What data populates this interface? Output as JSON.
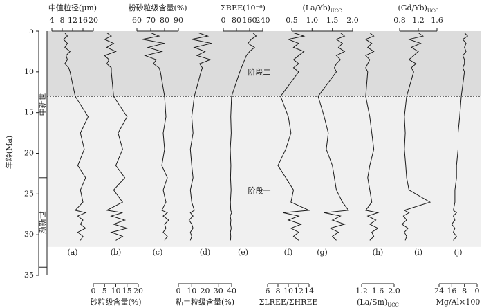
{
  "chart_data": {
    "type": "profile",
    "y_label": "年龄(Ma)",
    "ylim": [
      5,
      35
    ],
    "yticks": [
      5,
      10,
      15,
      20,
      25,
      30,
      35
    ],
    "line_color": "#1a1a1a",
    "x": [
      5.2,
      5.6,
      6.0,
      6.5,
      7.0,
      7.5,
      8.0,
      8.5,
      9.0,
      9.5,
      10.0,
      13.0,
      15.5,
      17.5,
      19.5,
      21.5,
      23.0,
      24.5,
      26.0,
      27.0,
      27.3,
      27.7,
      28.2,
      28.7,
      29.2,
      29.7,
      30.2,
      30.7
    ],
    "epochs": [
      {
        "name": "中新世",
        "range": [
          5,
          23
        ]
      },
      {
        "name": "渐新世",
        "range": [
          23,
          34
        ]
      }
    ],
    "stages": [
      {
        "name": "阶段二",
        "range": [
          5,
          13
        ],
        "color": "#dcdcdc"
      },
      {
        "name": "阶段一",
        "range": [
          13,
          31.5
        ],
        "color": "#f0f0f0"
      }
    ],
    "panels": [
      {
        "label": "(a)",
        "axis_title": "中值粒径(μm)",
        "axis_position": "top",
        "xlim": [
          4,
          20
        ],
        "xticks": [
          4,
          8,
          12,
          16,
          20
        ],
        "values": [
          9,
          10,
          8.5,
          10,
          9,
          11,
          9.5,
          10,
          9,
          10.5,
          11,
          13,
          18,
          15,
          16.5,
          14,
          17,
          15,
          16,
          13,
          17,
          14,
          16,
          15,
          17,
          14,
          16,
          15
        ]
      },
      {
        "label": "(b)",
        "axis_title": "砂粒级含量(%)",
        "axis_position": "bottom",
        "xlim": [
          0,
          20
        ],
        "xticks": [
          0,
          5,
          10,
          15,
          20
        ],
        "values": [
          6,
          8,
          5,
          9,
          6,
          10,
          5,
          7,
          6,
          8,
          8,
          9,
          15,
          11,
          13,
          10,
          14,
          9,
          13,
          6,
          13,
          8,
          14,
          9,
          15,
          8,
          13,
          10
        ]
      },
      {
        "label": "(c)",
        "axis_title": "粉砂粒级含量(%)",
        "axis_position": "top",
        "xlim": [
          60,
          90
        ],
        "xticks": [
          60,
          70,
          80,
          90
        ],
        "values": [
          70,
          76,
          64,
          80,
          68,
          78,
          66,
          74,
          72,
          76,
          77,
          80,
          81,
          79,
          80,
          78,
          82,
          79,
          81,
          78,
          82,
          79,
          83,
          80,
          81,
          79,
          82,
          80
        ]
      },
      {
        "label": "(d)",
        "axis_title": "粘土粒级含量(%)",
        "axis_position": "bottom",
        "xlim": [
          0,
          40
        ],
        "xticks": [
          0,
          10,
          20,
          30,
          40
        ],
        "values": [
          15,
          22,
          10,
          25,
          12,
          20,
          14,
          24,
          16,
          18,
          17,
          12,
          10,
          11,
          9,
          10,
          11,
          9,
          10,
          12,
          9,
          11,
          8,
          10,
          11,
          9,
          10,
          9
        ]
      },
      {
        "label": "(e)",
        "axis_title": "ΣREE(10⁻⁶)",
        "axis_position": "top",
        "xlim": [
          0,
          240
        ],
        "xticks": [
          0,
          80,
          160,
          240
        ],
        "values": [
          180,
          200,
          170,
          150,
          190,
          160,
          140,
          130,
          120,
          110,
          100,
          50,
          45,
          48,
          42,
          46,
          44,
          47,
          43,
          45,
          50,
          42,
          46,
          44,
          48,
          43,
          45,
          44
        ]
      },
      {
        "label": "(f)",
        "axis_title": "ΣLREE/ΣHREE",
        "axis_position": "bottom",
        "xlim": [
          6,
          14
        ],
        "xticks": [
          6,
          8,
          10,
          12,
          14
        ],
        "values": [
          11,
          13,
          10,
          12,
          11,
          13,
          12,
          11,
          12,
          11,
          12,
          8.5,
          10,
          10.5,
          9.5,
          8,
          9.5,
          11,
          10.5,
          14,
          9,
          12,
          10,
          12.5,
          10.5,
          12,
          11,
          12
        ]
      },
      {
        "label": "(g)",
        "axis_title": "(La/Yb)",
        "axis_sub": "UCC",
        "axis_position": "top",
        "xlim": [
          0.5,
          2.0
        ],
        "xticks": [
          0.5,
          {
            "value": 1.0,
            "label": "1.0"
          },
          1.5,
          {
            "value": 2.0,
            "label": "2.0"
          }
        ],
        "values": [
          1.7,
          1.8,
          1.6,
          1.75,
          1.65,
          1.8,
          1.6,
          1.7,
          1.6,
          1.55,
          1.6,
          1.15,
          1.3,
          1.4,
          1.35,
          1.5,
          1.55,
          1.6,
          1.75,
          1.9,
          1.3,
          1.7,
          1.5,
          1.8,
          1.45,
          1.65,
          1.5,
          1.6
        ]
      },
      {
        "label": "(h)",
        "axis_title": "(La/Sm)",
        "axis_sub": "UCC",
        "axis_position": "bottom",
        "xlim": [
          1.2,
          2.0
        ],
        "xticks": [
          1.2,
          1.6,
          {
            "value": 2.0,
            "label": "2.0"
          }
        ],
        "values": [
          1.4,
          1.5,
          1.3,
          1.45,
          1.35,
          1.5,
          1.3,
          1.4,
          1.35,
          1.3,
          1.35,
          1.3,
          1.4,
          1.45,
          1.5,
          1.4,
          1.35,
          1.4,
          1.45,
          1.3,
          1.6,
          1.35,
          1.55,
          1.4,
          1.6,
          1.45,
          1.5,
          1.4
        ]
      },
      {
        "label": "(i)",
        "axis_title": "(Gd/Yb)",
        "axis_sub": "UCC",
        "axis_position": "top",
        "xlim": [
          0.8,
          1.6
        ],
        "xticks": [
          0.8,
          1.2,
          1.6
        ],
        "values": [
          1.2,
          1.3,
          1.0,
          1.25,
          1.05,
          1.2,
          1.1,
          1.0,
          1.15,
          1.05,
          1.1,
          0.95,
          0.9,
          0.92,
          0.9,
          0.93,
          0.95,
          1.0,
          1.45,
          0.9,
          1.0,
          0.88,
          0.95,
          0.85,
          0.98,
          0.9,
          0.95,
          0.92
        ]
      },
      {
        "label": "(j)",
        "axis_title": "Mg/Al×100",
        "axis_position": "bottom",
        "xlim": [
          24,
          0
        ],
        "xticks": [
          24,
          16,
          8,
          0
        ],
        "values": [
          8,
          6,
          9,
          7,
          8,
          7,
          9,
          8,
          8,
          9,
          8,
          10,
          11,
          12,
          12,
          13,
          13,
          14,
          14,
          15,
          13,
          15,
          14,
          16,
          14,
          15,
          13,
          15
        ]
      }
    ]
  }
}
